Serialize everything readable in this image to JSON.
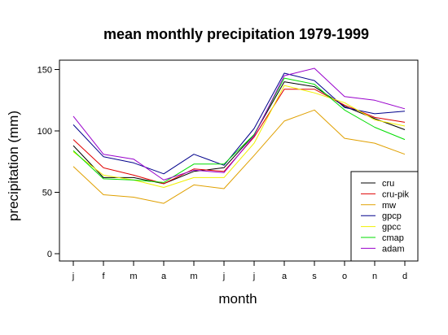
{
  "chart_data": {
    "type": "line",
    "title": "mean monthly precipitation 1979-1999",
    "xlabel": "month",
    "ylabel": "precipitation (mm)",
    "categories": [
      "j",
      "f",
      "m",
      "a",
      "m",
      "j",
      "j",
      "a",
      "s",
      "o",
      "n",
      "d"
    ],
    "ylim": [
      0,
      158
    ],
    "yticks": [
      0,
      50,
      100,
      150
    ],
    "grid": false,
    "legend_position": "bottom-right",
    "series": [
      {
        "name": "cru",
        "color": "#000000",
        "values": [
          88,
          62,
          62,
          57,
          67,
          70,
          97,
          140,
          136,
          120,
          110,
          101
        ]
      },
      {
        "name": "cru-pik",
        "color": "#e00000",
        "values": [
          93,
          70,
          64,
          57,
          69,
          67,
          95,
          134,
          134,
          121,
          111,
          107
        ]
      },
      {
        "name": "mw",
        "color": "#e0a000",
        "values": [
          71,
          48,
          46,
          41,
          56,
          53,
          80,
          108,
          117,
          94,
          90,
          81
        ]
      },
      {
        "name": "gpcp",
        "color": "#00008b",
        "values": [
          105,
          79,
          74,
          65,
          81,
          72,
          102,
          147,
          141,
          119,
          114,
          116
        ]
      },
      {
        "name": "gpcc",
        "color": "#f0f000",
        "values": [
          83,
          64,
          60,
          54,
          62,
          62,
          90,
          137,
          131,
          123,
          109,
          104
        ]
      },
      {
        "name": "cmap",
        "color": "#00dd00",
        "values": [
          84,
          61,
          60,
          58,
          73,
          73,
          97,
          143,
          138,
          117,
          103,
          93
        ]
      },
      {
        "name": "adam",
        "color": "#9900cc",
        "values": [
          112,
          81,
          77,
          60,
          68,
          66,
          96,
          145,
          151,
          128,
          125,
          118
        ]
      }
    ]
  }
}
